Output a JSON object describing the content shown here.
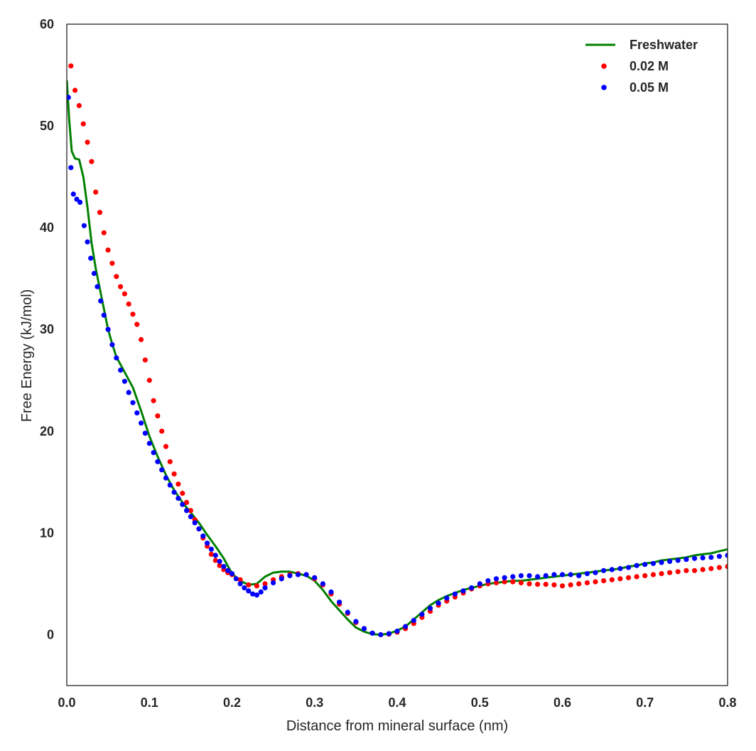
{
  "chart_data": {
    "type": "line",
    "title": "",
    "xlabel": "Distance from mineral surface (nm)",
    "ylabel": "Free Energy (kJ/mol)",
    "xlim": [
      0.0,
      0.8
    ],
    "ylim": [
      -5,
      60
    ],
    "xticks": [
      0.0,
      0.1,
      0.2,
      0.3,
      0.4,
      0.5,
      0.6,
      0.7,
      0.8
    ],
    "xtick_labels": [
      "0.0",
      "0.1",
      "0.2",
      "0.3",
      "0.4",
      "0.5",
      "0.6",
      "0.7",
      "0.8"
    ],
    "yticks": [
      0,
      10,
      20,
      30,
      40,
      50,
      60
    ],
    "ytick_labels": [
      "0",
      "10",
      "20",
      "30",
      "40",
      "50",
      "60"
    ],
    "grid": false,
    "legend_position": "top-right",
    "series": [
      {
        "name": "Freshwater",
        "style": "line",
        "color": "#008000",
        "points": [
          [
            0.0,
            54.5
          ],
          [
            0.003,
            50.5
          ],
          [
            0.006,
            47.5
          ],
          [
            0.01,
            46.8
          ],
          [
            0.015,
            46.7
          ],
          [
            0.02,
            45.0
          ],
          [
            0.025,
            42.0
          ],
          [
            0.03,
            38.5
          ],
          [
            0.035,
            36.0
          ],
          [
            0.04,
            34.0
          ],
          [
            0.045,
            32.0
          ],
          [
            0.05,
            30.0
          ],
          [
            0.055,
            28.6
          ],
          [
            0.06,
            27.3
          ],
          [
            0.07,
            25.8
          ],
          [
            0.08,
            24.3
          ],
          [
            0.09,
            22.0
          ],
          [
            0.1,
            19.5
          ],
          [
            0.11,
            17.5
          ],
          [
            0.12,
            15.7
          ],
          [
            0.13,
            14.2
          ],
          [
            0.14,
            13.0
          ],
          [
            0.15,
            12.0
          ],
          [
            0.16,
            11.0
          ],
          [
            0.17,
            9.8
          ],
          [
            0.18,
            8.7
          ],
          [
            0.19,
            7.5
          ],
          [
            0.2,
            6.0
          ],
          [
            0.21,
            5.3
          ],
          [
            0.22,
            4.9
          ],
          [
            0.23,
            5.0
          ],
          [
            0.24,
            5.7
          ],
          [
            0.25,
            6.1
          ],
          [
            0.26,
            6.2
          ],
          [
            0.27,
            6.2
          ],
          [
            0.28,
            6.0
          ],
          [
            0.29,
            5.8
          ],
          [
            0.3,
            5.3
          ],
          [
            0.31,
            4.4
          ],
          [
            0.32,
            3.3
          ],
          [
            0.33,
            2.4
          ],
          [
            0.34,
            1.5
          ],
          [
            0.35,
            0.7
          ],
          [
            0.36,
            0.3
          ],
          [
            0.37,
            0.05
          ],
          [
            0.38,
            0.0
          ],
          [
            0.39,
            0.1
          ],
          [
            0.4,
            0.4
          ],
          [
            0.41,
            0.8
          ],
          [
            0.42,
            1.5
          ],
          [
            0.43,
            2.2
          ],
          [
            0.44,
            2.9
          ],
          [
            0.45,
            3.4
          ],
          [
            0.46,
            3.8
          ],
          [
            0.47,
            4.1
          ],
          [
            0.48,
            4.4
          ],
          [
            0.49,
            4.6
          ],
          [
            0.5,
            4.8
          ],
          [
            0.51,
            5.0
          ],
          [
            0.52,
            5.1
          ],
          [
            0.53,
            5.2
          ],
          [
            0.54,
            5.3
          ],
          [
            0.55,
            5.3
          ],
          [
            0.56,
            5.4
          ],
          [
            0.57,
            5.5
          ],
          [
            0.58,
            5.6
          ],
          [
            0.59,
            5.7
          ],
          [
            0.6,
            5.8
          ],
          [
            0.61,
            5.9
          ],
          [
            0.62,
            6.0
          ],
          [
            0.63,
            6.1
          ],
          [
            0.64,
            6.2
          ],
          [
            0.65,
            6.3
          ],
          [
            0.66,
            6.4
          ],
          [
            0.67,
            6.5
          ],
          [
            0.68,
            6.7
          ],
          [
            0.69,
            6.8
          ],
          [
            0.7,
            7.0
          ],
          [
            0.71,
            7.1
          ],
          [
            0.72,
            7.3
          ],
          [
            0.73,
            7.4
          ],
          [
            0.74,
            7.5
          ],
          [
            0.75,
            7.6
          ],
          [
            0.76,
            7.8
          ],
          [
            0.77,
            7.9
          ],
          [
            0.78,
            8.0
          ],
          [
            0.79,
            8.2
          ],
          [
            0.8,
            8.4
          ]
        ]
      },
      {
        "name": "0.02 M",
        "style": "dots",
        "color": "#ff0000",
        "points": [
          [
            0.005,
            55.9
          ],
          [
            0.01,
            53.5
          ],
          [
            0.015,
            52.0
          ],
          [
            0.02,
            50.2
          ],
          [
            0.025,
            48.4
          ],
          [
            0.03,
            46.5
          ],
          [
            0.035,
            43.5
          ],
          [
            0.04,
            41.5
          ],
          [
            0.045,
            39.5
          ],
          [
            0.05,
            37.8
          ],
          [
            0.055,
            36.5
          ],
          [
            0.06,
            35.2
          ],
          [
            0.065,
            34.2
          ],
          [
            0.07,
            33.5
          ],
          [
            0.075,
            32.5
          ],
          [
            0.08,
            31.5
          ],
          [
            0.085,
            30.5
          ],
          [
            0.09,
            29.0
          ],
          [
            0.095,
            27.0
          ],
          [
            0.1,
            25.0
          ],
          [
            0.105,
            23.0
          ],
          [
            0.11,
            21.5
          ],
          [
            0.115,
            20.0
          ],
          [
            0.12,
            18.5
          ],
          [
            0.125,
            17.0
          ],
          [
            0.13,
            15.8
          ],
          [
            0.135,
            14.8
          ],
          [
            0.14,
            13.9
          ],
          [
            0.145,
            13.0
          ],
          [
            0.15,
            12.2
          ],
          [
            0.155,
            11.3
          ],
          [
            0.16,
            10.4
          ],
          [
            0.165,
            9.5
          ],
          [
            0.17,
            8.7
          ],
          [
            0.175,
            7.9
          ],
          [
            0.18,
            7.3
          ],
          [
            0.185,
            6.8
          ],
          [
            0.19,
            6.4
          ],
          [
            0.195,
            6.1
          ],
          [
            0.2,
            5.9
          ],
          [
            0.21,
            5.4
          ],
          [
            0.22,
            4.9
          ],
          [
            0.23,
            4.8
          ],
          [
            0.24,
            5.0
          ],
          [
            0.25,
            5.4
          ],
          [
            0.26,
            5.7
          ],
          [
            0.27,
            5.9
          ],
          [
            0.28,
            6.0
          ],
          [
            0.29,
            5.9
          ],
          [
            0.3,
            5.5
          ],
          [
            0.31,
            4.9
          ],
          [
            0.32,
            4.0
          ],
          [
            0.33,
            3.0
          ],
          [
            0.34,
            2.1
          ],
          [
            0.35,
            1.2
          ],
          [
            0.36,
            0.6
          ],
          [
            0.37,
            0.15
          ],
          [
            0.38,
            0.0
          ],
          [
            0.39,
            0.05
          ],
          [
            0.4,
            0.25
          ],
          [
            0.41,
            0.6
          ],
          [
            0.42,
            1.1
          ],
          [
            0.43,
            1.7
          ],
          [
            0.44,
            2.3
          ],
          [
            0.45,
            2.9
          ],
          [
            0.46,
            3.3
          ],
          [
            0.47,
            3.7
          ],
          [
            0.48,
            4.1
          ],
          [
            0.49,
            4.5
          ],
          [
            0.5,
            4.8
          ],
          [
            0.51,
            5.0
          ],
          [
            0.52,
            5.1
          ],
          [
            0.53,
            5.2
          ],
          [
            0.54,
            5.2
          ],
          [
            0.55,
            5.1
          ],
          [
            0.56,
            5.0
          ],
          [
            0.57,
            4.95
          ],
          [
            0.58,
            4.95
          ],
          [
            0.59,
            4.9
          ],
          [
            0.6,
            4.8
          ],
          [
            0.61,
            4.9
          ],
          [
            0.62,
            5.0
          ],
          [
            0.63,
            5.1
          ],
          [
            0.64,
            5.2
          ],
          [
            0.65,
            5.3
          ],
          [
            0.66,
            5.4
          ],
          [
            0.67,
            5.5
          ],
          [
            0.68,
            5.6
          ],
          [
            0.69,
            5.7
          ],
          [
            0.7,
            5.8
          ],
          [
            0.71,
            5.9
          ],
          [
            0.72,
            6.0
          ],
          [
            0.73,
            6.1
          ],
          [
            0.74,
            6.2
          ],
          [
            0.75,
            6.3
          ],
          [
            0.76,
            6.3
          ],
          [
            0.77,
            6.4
          ],
          [
            0.78,
            6.5
          ],
          [
            0.79,
            6.6
          ],
          [
            0.8,
            6.7
          ]
        ]
      },
      {
        "name": "0.05 M",
        "style": "dots",
        "color": "#0000ff",
        "points": [
          [
            0.002,
            52.8
          ],
          [
            0.005,
            45.9
          ],
          [
            0.008,
            43.3
          ],
          [
            0.012,
            42.8
          ],
          [
            0.016,
            42.5
          ],
          [
            0.021,
            40.2
          ],
          [
            0.025,
            38.6
          ],
          [
            0.029,
            37.0
          ],
          [
            0.033,
            35.5
          ],
          [
            0.037,
            34.2
          ],
          [
            0.041,
            32.8
          ],
          [
            0.045,
            31.4
          ],
          [
            0.05,
            30.0
          ],
          [
            0.055,
            28.5
          ],
          [
            0.06,
            27.2
          ],
          [
            0.065,
            26.0
          ],
          [
            0.07,
            24.9
          ],
          [
            0.075,
            23.8
          ],
          [
            0.08,
            22.8
          ],
          [
            0.085,
            21.8
          ],
          [
            0.09,
            20.8
          ],
          [
            0.095,
            19.8
          ],
          [
            0.1,
            18.8
          ],
          [
            0.105,
            17.9
          ],
          [
            0.11,
            17.0
          ],
          [
            0.115,
            16.2
          ],
          [
            0.12,
            15.4
          ],
          [
            0.125,
            14.7
          ],
          [
            0.13,
            14.0
          ],
          [
            0.135,
            13.4
          ],
          [
            0.14,
            12.8
          ],
          [
            0.145,
            12.2
          ],
          [
            0.15,
            11.6
          ],
          [
            0.155,
            11.0
          ],
          [
            0.16,
            10.4
          ],
          [
            0.165,
            9.7
          ],
          [
            0.17,
            9.0
          ],
          [
            0.175,
            8.4
          ],
          [
            0.18,
            7.8
          ],
          [
            0.185,
            7.2
          ],
          [
            0.19,
            6.7
          ],
          [
            0.195,
            6.3
          ],
          [
            0.2,
            6.0
          ],
          [
            0.205,
            5.5
          ],
          [
            0.21,
            5.0
          ],
          [
            0.215,
            4.6
          ],
          [
            0.22,
            4.3
          ],
          [
            0.225,
            4.0
          ],
          [
            0.23,
            3.9
          ],
          [
            0.235,
            4.2
          ],
          [
            0.24,
            4.6
          ],
          [
            0.25,
            5.1
          ],
          [
            0.26,
            5.5
          ],
          [
            0.27,
            5.8
          ],
          [
            0.28,
            5.9
          ],
          [
            0.29,
            5.9
          ],
          [
            0.3,
            5.6
          ],
          [
            0.31,
            5.0
          ],
          [
            0.32,
            4.2
          ],
          [
            0.33,
            3.2
          ],
          [
            0.34,
            2.2
          ],
          [
            0.35,
            1.3
          ],
          [
            0.36,
            0.6
          ],
          [
            0.37,
            0.15
          ],
          [
            0.38,
            0.0
          ],
          [
            0.39,
            0.1
          ],
          [
            0.4,
            0.35
          ],
          [
            0.41,
            0.8
          ],
          [
            0.42,
            1.4
          ],
          [
            0.43,
            2.0
          ],
          [
            0.44,
            2.6
          ],
          [
            0.45,
            3.1
          ],
          [
            0.46,
            3.6
          ],
          [
            0.47,
            4.0
          ],
          [
            0.48,
            4.3
          ],
          [
            0.49,
            4.6
          ],
          [
            0.5,
            5.0
          ],
          [
            0.51,
            5.3
          ],
          [
            0.52,
            5.5
          ],
          [
            0.53,
            5.6
          ],
          [
            0.54,
            5.7
          ],
          [
            0.55,
            5.8
          ],
          [
            0.56,
            5.8
          ],
          [
            0.57,
            5.7
          ],
          [
            0.58,
            5.8
          ],
          [
            0.59,
            5.9
          ],
          [
            0.6,
            5.9
          ],
          [
            0.61,
            5.9
          ],
          [
            0.62,
            5.8
          ],
          [
            0.63,
            6.0
          ],
          [
            0.64,
            6.1
          ],
          [
            0.65,
            6.3
          ],
          [
            0.66,
            6.4
          ],
          [
            0.67,
            6.5
          ],
          [
            0.68,
            6.6
          ],
          [
            0.69,
            6.8
          ],
          [
            0.7,
            6.9
          ],
          [
            0.71,
            7.0
          ],
          [
            0.72,
            7.1
          ],
          [
            0.73,
            7.2
          ],
          [
            0.74,
            7.3
          ],
          [
            0.75,
            7.4
          ],
          [
            0.76,
            7.5
          ],
          [
            0.77,
            7.55
          ],
          [
            0.78,
            7.6
          ],
          [
            0.79,
            7.7
          ],
          [
            0.8,
            7.8
          ]
        ]
      }
    ]
  }
}
